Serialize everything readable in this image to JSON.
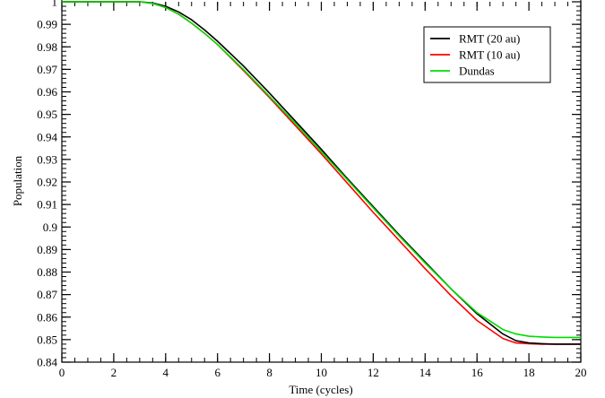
{
  "chart_data": {
    "type": "line",
    "title": "",
    "xlabel": "Time (cycles)",
    "ylabel": "Population",
    "xlim": [
      0,
      20
    ],
    "ylim": [
      0.84,
      1.0
    ],
    "grid": false,
    "legend_position": "top-right",
    "x_ticks": [
      0,
      2,
      4,
      6,
      8,
      10,
      12,
      14,
      16,
      18,
      20
    ],
    "x_tick_labels": [
      "0",
      "2",
      "4",
      "6",
      "8",
      "10",
      "12",
      "14",
      "16",
      "18",
      "20"
    ],
    "y_ticks": [
      0.84,
      0.85,
      0.86,
      0.87,
      0.88,
      0.89,
      0.9,
      0.91,
      0.92,
      0.93,
      0.94,
      0.95,
      0.96,
      0.97,
      0.98,
      0.99,
      1.0
    ],
    "y_tick_labels": [
      "0.84",
      "0.85",
      "0.86",
      "0.87",
      "0.88",
      "0.89",
      "0.9",
      "0.91",
      "0.92",
      "0.93",
      "0.94",
      "0.95",
      "0.96",
      "0.97",
      "0.98",
      "0.99",
      "1"
    ],
    "x": [
      0,
      1,
      2,
      3,
      3.5,
      4,
      4.5,
      5,
      5.5,
      6,
      7,
      8,
      9,
      10,
      11,
      12,
      13,
      14,
      15,
      16,
      17,
      17.5,
      18,
      18.5,
      19,
      20
    ],
    "series": [
      {
        "name": "RMT (20 au)",
        "color": "#000000",
        "values": [
          1.0,
          1.0,
          1.0,
          1.0,
          0.9995,
          0.998,
          0.9955,
          0.992,
          0.9875,
          0.9825,
          0.9715,
          0.9595,
          0.947,
          0.9345,
          0.9215,
          0.909,
          0.8965,
          0.8845,
          0.8725,
          0.8615,
          0.8525,
          0.8495,
          0.8485,
          0.8482,
          0.848,
          0.848
        ]
      },
      {
        "name": "RMT (10 au)",
        "color": "#ff0000",
        "values": [
          1.0,
          1.0,
          1.0,
          1.0,
          0.9993,
          0.9975,
          0.9945,
          0.9905,
          0.986,
          0.981,
          0.9695,
          0.9575,
          0.945,
          0.9325,
          0.9195,
          0.9065,
          0.894,
          0.8815,
          0.8695,
          0.8585,
          0.8505,
          0.8485,
          0.8482,
          0.848,
          0.848,
          0.848
        ]
      },
      {
        "name": "Dundas",
        "color": "#00dd00",
        "values": [
          1.0,
          1.0,
          1.0,
          1.0,
          0.9993,
          0.9975,
          0.9945,
          0.9905,
          0.986,
          0.981,
          0.97,
          0.958,
          0.946,
          0.9335,
          0.921,
          0.9085,
          0.896,
          0.884,
          0.8725,
          0.862,
          0.8545,
          0.8525,
          0.8515,
          0.8512,
          0.851,
          0.851
        ]
      }
    ]
  }
}
